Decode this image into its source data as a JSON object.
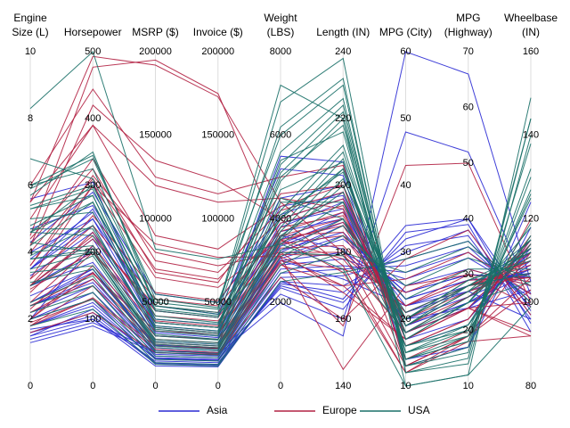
{
  "chart_data": {
    "type": "parallel-coordinates",
    "title": "",
    "grid": true,
    "legend_position": "bottom",
    "axes": [
      {
        "key": "engine",
        "label": [
          "Engine",
          "Size (L)"
        ],
        "min": 0,
        "max": 10,
        "ticks": [
          0,
          10
        ],
        "inner_ticks": [
          2,
          4,
          6,
          8
        ]
      },
      {
        "key": "hp",
        "label": [
          "",
          "Horsepower"
        ],
        "min": 0,
        "max": 500,
        "ticks": [
          0,
          500
        ],
        "inner_ticks": [
          100,
          200,
          300,
          400
        ]
      },
      {
        "key": "msrp",
        "label": [
          "",
          "MSRP ($)"
        ],
        "min": 0,
        "max": 200000,
        "ticks": [
          0,
          200000
        ],
        "inner_ticks": [
          50000,
          100000,
          150000
        ]
      },
      {
        "key": "invoice",
        "label": [
          "",
          "Invoice ($)"
        ],
        "min": 0,
        "max": 200000,
        "ticks": [
          0,
          200000
        ],
        "inner_ticks": [
          50000,
          100000,
          150000
        ]
      },
      {
        "key": "weight",
        "label": [
          "Weight",
          "(LBS)"
        ],
        "min": 0,
        "max": 8000,
        "ticks": [
          0,
          8000
        ],
        "inner_ticks": [
          2000,
          4000,
          6000
        ]
      },
      {
        "key": "length",
        "label": [
          "",
          "Length (IN)"
        ],
        "min": 140,
        "max": 240,
        "ticks": [
          140,
          240
        ],
        "inner_ticks": [
          160,
          180,
          200,
          220
        ]
      },
      {
        "key": "mpg_city",
        "label": [
          "",
          "MPG (City)"
        ],
        "min": 10,
        "max": 60,
        "ticks": [
          10,
          60
        ],
        "inner_ticks": [
          20,
          30,
          40,
          50
        ]
      },
      {
        "key": "mpg_hwy",
        "label": [
          "MPG",
          "(Highway)"
        ],
        "min": 10,
        "max": 70,
        "ticks": [
          10,
          70
        ],
        "inner_ticks": [
          20,
          30,
          40,
          50,
          60
        ]
      },
      {
        "key": "wheelbase",
        "label": [
          "Wheelbase",
          "(IN)"
        ],
        "min": 80,
        "max": 160,
        "ticks": [
          80,
          160
        ],
        "inner_ticks": [
          100,
          120,
          140
        ]
      }
    ],
    "series": [
      {
        "name": "Asia",
        "color": "#2a2ad4",
        "lines": [
          [
            1.5,
            100,
            15000,
            14000,
            2400,
            165,
            32,
            40,
            95
          ],
          [
            1.6,
            110,
            14000,
            13000,
            2500,
            170,
            30,
            38,
            97
          ],
          [
            1.8,
            125,
            17000,
            16000,
            2700,
            175,
            28,
            35,
            100
          ],
          [
            2.0,
            140,
            19000,
            18000,
            2900,
            178,
            26,
            33,
            102
          ],
          [
            2.2,
            150,
            20000,
            18500,
            3000,
            180,
            25,
            31,
            104
          ],
          [
            2.4,
            160,
            22000,
            20000,
            3100,
            185,
            24,
            30,
            106
          ],
          [
            2.5,
            170,
            24000,
            22000,
            3200,
            188,
            23,
            29,
            107
          ],
          [
            3.0,
            200,
            27000,
            25000,
            3400,
            190,
            21,
            27,
            108
          ],
          [
            3.0,
            220,
            30000,
            28000,
            3500,
            192,
            20,
            26,
            108
          ],
          [
            3.3,
            230,
            32000,
            29000,
            3700,
            190,
            19,
            25,
            107
          ],
          [
            3.5,
            250,
            35000,
            32000,
            3800,
            195,
            18,
            24,
            110
          ],
          [
            3.5,
            265,
            40000,
            37000,
            4000,
            196,
            18,
            24,
            112
          ],
          [
            4.0,
            250,
            45000,
            41000,
            4500,
            200,
            16,
            21,
            115
          ],
          [
            4.3,
            290,
            55000,
            50000,
            4100,
            198,
            18,
            24,
            112
          ],
          [
            4.7,
            270,
            48000,
            43000,
            5200,
            203,
            14,
            17,
            118
          ],
          [
            5.6,
            305,
            38000,
            35000,
            5500,
            207,
            13,
            17,
            124
          ],
          [
            1.3,
            90,
            20000,
            19000,
            2000,
            155,
            60,
            66,
            105
          ],
          [
            1.4,
            95,
            21000,
            20000,
            2200,
            160,
            48,
            52,
            102
          ],
          [
            2.0,
            130,
            18000,
            17000,
            2800,
            176,
            27,
            34,
            101
          ],
          [
            2.4,
            155,
            21000,
            19500,
            3050,
            184,
            24,
            30,
            106
          ],
          [
            3.5,
            240,
            33000,
            30000,
            3900,
            193,
            19,
            25,
            109
          ],
          [
            1.8,
            120,
            16000,
            15000,
            2600,
            173,
            29,
            36,
            99
          ],
          [
            2.0,
            210,
            30000,
            28000,
            3000,
            172,
            22,
            27,
            96
          ],
          [
            1.6,
            105,
            13500,
            12500,
            2450,
            168,
            31,
            37,
            96
          ],
          [
            3.0,
            185,
            26000,
            24000,
            3350,
            189,
            22,
            28,
            107
          ],
          [
            2.5,
            175,
            24500,
            22500,
            3250,
            186,
            23,
            29,
            106
          ],
          [
            1.5,
            115,
            16500,
            15500,
            2350,
            163,
            33,
            39,
            93
          ],
          [
            3.8,
            260,
            36000,
            33000,
            4300,
            197,
            17,
            22,
            113
          ],
          [
            2.7,
            175,
            23000,
            21000,
            3600,
            181,
            20,
            24,
            103
          ],
          [
            1.7,
            100,
            12000,
            11500,
            2500,
            166,
            34,
            40,
            98
          ]
        ]
      },
      {
        "name": "Europe",
        "color": "#b22244",
        "lines": [
          [
            1.8,
            150,
            25000,
            23000,
            3000,
            175,
            24,
            31,
            104
          ],
          [
            2.0,
            180,
            30000,
            28000,
            3200,
            180,
            22,
            29,
            106
          ],
          [
            2.3,
            200,
            35000,
            32000,
            3300,
            182,
            21,
            28,
            106
          ],
          [
            2.5,
            210,
            38000,
            35000,
            3400,
            185,
            20,
            28,
            108
          ],
          [
            2.8,
            230,
            42000,
            39000,
            3500,
            188,
            19,
            27,
            110
          ],
          [
            3.0,
            225,
            45000,
            41000,
            3600,
            190,
            20,
            28,
            110
          ],
          [
            3.2,
            240,
            52000,
            48000,
            3700,
            192,
            18,
            26,
            112
          ],
          [
            3.2,
            300,
            65000,
            59000,
            3500,
            178,
            18,
            24,
            100
          ],
          [
            4.0,
            310,
            70000,
            64000,
            4000,
            196,
            17,
            24,
            114
          ],
          [
            4.2,
            340,
            75000,
            68000,
            4200,
            198,
            16,
            22,
            116
          ],
          [
            4.4,
            325,
            68000,
            62000,
            4600,
            200,
            16,
            22,
            115
          ],
          [
            5.0,
            390,
            90000,
            82000,
            4300,
            200,
            14,
            20,
            114
          ],
          [
            5.5,
            390,
            120000,
            110000,
            4500,
            193,
            13,
            19,
            112
          ],
          [
            5.5,
            493,
            192000,
            173000,
            4400,
            180,
            13,
            19,
            106
          ],
          [
            4.5,
            477,
            195000,
            175000,
            3500,
            174,
            12,
            18,
            92
          ],
          [
            6.0,
            444,
            125000,
            115000,
            5000,
            206,
            13,
            19,
            120
          ],
          [
            3.6,
            315,
            80000,
            72000,
            3200,
            168,
            17,
            24,
            93
          ],
          [
            3.6,
            300,
            85000,
            77000,
            3100,
            170,
            17,
            24,
            92
          ],
          [
            1.6,
            110,
            20000,
            19000,
            2600,
            160,
            29,
            38,
            97
          ],
          [
            1.9,
            130,
            22000,
            20000,
            2900,
            170,
            26,
            34,
            102
          ],
          [
            2.0,
            170,
            28000,
            26000,
            3150,
            179,
            22,
            30,
            105
          ],
          [
            2.4,
            168,
            33000,
            31000,
            3450,
            189,
            21,
            28,
            109
          ],
          [
            3.0,
            220,
            48000,
            44000,
            3800,
            191,
            19,
            26,
            111
          ],
          [
            4.2,
            420,
            135000,
            123000,
            4000,
            176,
            12,
            19,
            103
          ],
          [
            1.8,
            132,
            24000,
            22500,
            2950,
            158,
            43,
            50,
            100
          ],
          [
            3.0,
            255,
            56000,
            51000,
            3900,
            194,
            18,
            26,
            113
          ],
          [
            2.9,
            201,
            39000,
            36000,
            3600,
            186,
            20,
            27,
            107
          ],
          [
            2.2,
            160,
            26000,
            24000,
            3100,
            145,
            25,
            30,
            99
          ]
        ]
      },
      {
        "name": "USA",
        "color": "#1a7068",
        "lines": [
          [
            2.2,
            140,
            16000,
            15000,
            2900,
            185,
            25,
            33,
            106
          ],
          [
            2.4,
            150,
            18000,
            17000,
            3100,
            188,
            23,
            31,
            108
          ],
          [
            3.1,
            175,
            21000,
            19500,
            3400,
            195,
            20,
            29,
            110
          ],
          [
            3.4,
            180,
            23000,
            21000,
            3500,
            200,
            20,
            29,
            112
          ],
          [
            3.8,
            200,
            25000,
            23000,
            3700,
            205,
            19,
            28,
            113
          ],
          [
            3.8,
            205,
            28000,
            26000,
            3800,
            208,
            19,
            27,
            115
          ],
          [
            4.6,
            225,
            35000,
            32000,
            4200,
            212,
            17,
            25,
            118
          ],
          [
            4.6,
            275,
            42000,
            38000,
            4000,
            210,
            17,
            25,
            115
          ],
          [
            5.3,
            295,
            40000,
            37000,
            5100,
            222,
            14,
            18,
            130
          ],
          [
            5.4,
            300,
            45000,
            41000,
            5600,
            226,
            13,
            17,
            138
          ],
          [
            6.0,
            325,
            48000,
            44000,
            6200,
            232,
            12,
            15,
            144
          ],
          [
            8.3,
            500,
            82000,
            76000,
            3400,
            175,
            10,
            12,
            99
          ],
          [
            5.7,
            350,
            48000,
            43000,
            3200,
            179,
            18,
            25,
            105
          ],
          [
            6.8,
            310,
            50000,
            46000,
            6800,
            238,
            12,
            14,
            140
          ],
          [
            6.0,
            345,
            52000,
            47000,
            7200,
            220,
            10,
            12,
            149
          ],
          [
            4.8,
            285,
            38000,
            35000,
            5400,
            216,
            15,
            19,
            127
          ],
          [
            2.0,
            130,
            14000,
            13000,
            2700,
            180,
            27,
            35,
            104
          ],
          [
            2.5,
            165,
            20000,
            18500,
            3250,
            190,
            21,
            28,
            107
          ],
          [
            3.5,
            200,
            26000,
            24000,
            3600,
            198,
            19,
            27,
            111
          ],
          [
            4.0,
            210,
            30000,
            27500,
            4500,
            190,
            16,
            21,
            114
          ],
          [
            4.2,
            275,
            33000,
            30000,
            4700,
            207,
            15,
            21,
            119
          ],
          [
            5.3,
            285,
            36000,
            33000,
            5300,
            224,
            14,
            18,
            132
          ],
          [
            3.0,
            195,
            24000,
            22000,
            3550,
            202,
            20,
            28,
            112
          ],
          [
            4.7,
            235,
            34000,
            31000,
            5000,
            218,
            14,
            19,
            126
          ],
          [
            3.9,
            240,
            31000,
            28000,
            4100,
            204,
            18,
            26,
            113
          ],
          [
            4.3,
            200,
            27000,
            25000,
            4400,
            195,
            16,
            20,
            116
          ],
          [
            5.9,
            340,
            55000,
            50000,
            6000,
            230,
            13,
            16,
            144
          ],
          [
            4.6,
            300,
            46000,
            42000,
            4000,
            205,
            17,
            25,
            115
          ],
          [
            1.8,
            115,
            13000,
            12000,
            2500,
            174,
            29,
            36,
            100
          ],
          [
            5.0,
            260,
            38000,
            35000,
            4900,
            220,
            15,
            20,
            125
          ]
        ]
      }
    ]
  }
}
